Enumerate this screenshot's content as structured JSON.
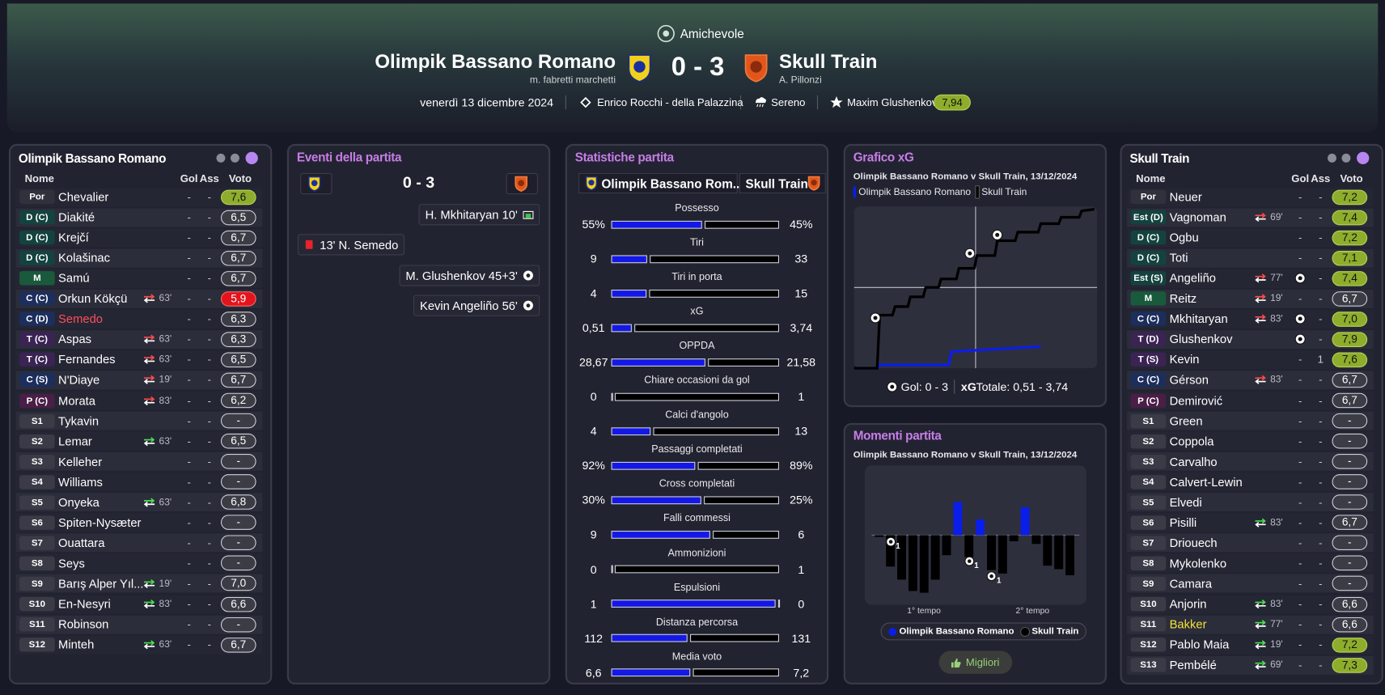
{
  "header": {
    "competition": "Amichevole",
    "home": {
      "name": "Olimpik Bassano Romano",
      "manager": "m. fabretti marchetti"
    },
    "score": "0 - 3",
    "away": {
      "name": "Skull Train",
      "manager": "A. Pillonzi"
    },
    "date": "venerdì 13 dicembre 2024",
    "stadium": "Enrico Rocchi - della Palazzina",
    "weather": "Sereno",
    "best_player": "Maxim Glushenkov",
    "best_rating": "7,94"
  },
  "home_lineup": {
    "title": "Olimpik Bassano Romano",
    "columns": [
      "Nome",
      "Gol",
      "Ass",
      "Voto"
    ],
    "rows": [
      {
        "pos": "Por",
        "name": "Chevalier",
        "gol": "-",
        "ass": "-",
        "voto": "7,6",
        "tone": "good"
      },
      {
        "pos": "D (C)",
        "name": "Diakité",
        "gol": "-",
        "ass": "-",
        "voto": "6,5"
      },
      {
        "pos": "D (C)",
        "name": "Krejčí",
        "gol": "-",
        "ass": "-",
        "voto": "6,7"
      },
      {
        "pos": "D (C)",
        "name": "Kolašinac",
        "gol": "-",
        "ass": "-",
        "voto": "6,7"
      },
      {
        "pos": "M",
        "name": "Samú",
        "gol": "-",
        "ass": "-",
        "voto": "6,7"
      },
      {
        "pos": "C (C)",
        "name": "Orkun Kökçü",
        "sub": "63'",
        "sub_dir": "out",
        "gol": "-",
        "ass": "-",
        "voto": "5,9",
        "tone": "bad"
      },
      {
        "pos": "C (D)",
        "name": "Semedo",
        "name_color": "#ff4d5e",
        "gol": "-",
        "ass": "-",
        "voto": "6,3"
      },
      {
        "pos": "T (C)",
        "name": "Aspas",
        "sub": "63'",
        "sub_dir": "out",
        "gol": "-",
        "ass": "-",
        "voto": "6,3"
      },
      {
        "pos": "T (C)",
        "name": "Fernandes",
        "sub": "63'",
        "sub_dir": "out",
        "gol": "-",
        "ass": "-",
        "voto": "6,5"
      },
      {
        "pos": "C (S)",
        "name": "N'Diaye",
        "sub": "19'",
        "sub_dir": "out",
        "gol": "-",
        "ass": "-",
        "voto": "6,7"
      },
      {
        "pos": "P (C)",
        "name": "Morata",
        "sub": "83'",
        "sub_dir": "out",
        "gol": "-",
        "ass": "-",
        "voto": "6,2"
      },
      {
        "pos": "S1",
        "name": "Tykavin",
        "gol": "-",
        "ass": "-",
        "voto": "-"
      },
      {
        "pos": "S2",
        "name": "Lemar",
        "sub": "63'",
        "sub_dir": "in",
        "gol": "-",
        "ass": "-",
        "voto": "6,5"
      },
      {
        "pos": "S3",
        "name": "Kelleher",
        "gol": "-",
        "ass": "-",
        "voto": "-"
      },
      {
        "pos": "S4",
        "name": "Williams",
        "gol": "-",
        "ass": "-",
        "voto": "-"
      },
      {
        "pos": "S5",
        "name": "Onyeka",
        "sub": "63'",
        "sub_dir": "in",
        "gol": "-",
        "ass": "-",
        "voto": "6,8"
      },
      {
        "pos": "S6",
        "name": "Spiten-Nysæter",
        "gol": "-",
        "ass": "-",
        "voto": "-"
      },
      {
        "pos": "S7",
        "name": "Ouattara",
        "gol": "-",
        "ass": "-",
        "voto": "-"
      },
      {
        "pos": "S8",
        "name": "Seys",
        "gol": "-",
        "ass": "-",
        "voto": "-"
      },
      {
        "pos": "S9",
        "name": "Barış Alper Yıl...",
        "sub": "19'",
        "sub_dir": "in",
        "gol": "-",
        "ass": "-",
        "voto": "7,0"
      },
      {
        "pos": "S10",
        "name": "En-Nesyri",
        "sub": "83'",
        "sub_dir": "in",
        "gol": "-",
        "ass": "-",
        "voto": "6,6"
      },
      {
        "pos": "S11",
        "name": "Robinson",
        "gol": "-",
        "ass": "-",
        "voto": "-"
      },
      {
        "pos": "S12",
        "name": "Minteh",
        "sub": "63'",
        "sub_dir": "in",
        "gol": "-",
        "ass": "-",
        "voto": "6,7"
      }
    ]
  },
  "away_lineup": {
    "title": "Skull Train",
    "columns": [
      "Nome",
      "Gol",
      "Ass",
      "Voto"
    ],
    "rows": [
      {
        "pos": "Por",
        "name": "Neuer",
        "gol": "-",
        "ass": "-",
        "voto": "7,2",
        "tone": "good"
      },
      {
        "pos": "Est (D)",
        "name": "Vagnoman",
        "sub": "69'",
        "sub_dir": "out",
        "gol": "-",
        "ass": "-",
        "voto": "7,4",
        "tone": "good"
      },
      {
        "pos": "D (C)",
        "name": "Ogbu",
        "gol": "-",
        "ass": "-",
        "voto": "7,2",
        "tone": "good"
      },
      {
        "pos": "D (C)",
        "name": "Toti",
        "gol": "-",
        "ass": "-",
        "voto": "7,1",
        "tone": "good"
      },
      {
        "pos": "Est (S)",
        "name": "Angeliño",
        "sub": "77'",
        "sub_dir": "out",
        "gol": 1,
        "ass": "-",
        "voto": "7,4",
        "tone": "good"
      },
      {
        "pos": "M",
        "name": "Reitz",
        "sub": "19'",
        "sub_dir": "out",
        "gol": "-",
        "ass": "-",
        "voto": "6,7"
      },
      {
        "pos": "C (C)",
        "name": "Mkhitaryan",
        "sub": "83'",
        "sub_dir": "out",
        "gol": 1,
        "ass": "-",
        "voto": "7,0",
        "tone": "good"
      },
      {
        "pos": "T (D)",
        "name": "Glushenkov",
        "gol": 1,
        "ass": "-",
        "voto": "7,9",
        "tone": "good"
      },
      {
        "pos": "T (S)",
        "name": "Kevin",
        "gol": "-",
        "ass": 1,
        "voto": "7,6",
        "tone": "good"
      },
      {
        "pos": "C (C)",
        "name": "Gérson",
        "sub": "83'",
        "sub_dir": "out",
        "gol": "-",
        "ass": "-",
        "voto": "6,7"
      },
      {
        "pos": "P (C)",
        "name": "Demirović",
        "gol": "-",
        "ass": "-",
        "voto": "6,7"
      },
      {
        "pos": "S1",
        "name": "Green",
        "gol": "-",
        "ass": "-",
        "voto": "-"
      },
      {
        "pos": "S2",
        "name": "Coppola",
        "gol": "-",
        "ass": "-",
        "voto": "-"
      },
      {
        "pos": "S3",
        "name": "Carvalho",
        "gol": "-",
        "ass": "-",
        "voto": "-"
      },
      {
        "pos": "S4",
        "name": "Calvert-Lewin",
        "gol": "-",
        "ass": "-",
        "voto": "-"
      },
      {
        "pos": "S5",
        "name": "Elvedi",
        "gol": "-",
        "ass": "-",
        "voto": "-"
      },
      {
        "pos": "S6",
        "name": "Pisilli",
        "sub": "83'",
        "sub_dir": "in",
        "gol": "-",
        "ass": "-",
        "voto": "6,7"
      },
      {
        "pos": "S7",
        "name": "Driouech",
        "gol": "-",
        "ass": "-",
        "voto": "-"
      },
      {
        "pos": "S8",
        "name": "Mykolenko",
        "gol": "-",
        "ass": "-",
        "voto": "-"
      },
      {
        "pos": "S9",
        "name": "Camara",
        "gol": "-",
        "ass": "-",
        "voto": "-"
      },
      {
        "pos": "S10",
        "name": "Anjorin",
        "sub": "83'",
        "sub_dir": "in",
        "gol": "-",
        "ass": "-",
        "voto": "6,6"
      },
      {
        "pos": "S11",
        "name": "Bakker",
        "name_color": "#f3e23a",
        "sub": "77'",
        "sub_dir": "in",
        "gol": "-",
        "ass": "-",
        "voto": "6,6"
      },
      {
        "pos": "S12",
        "name": "Pablo Maia",
        "sub": "19'",
        "sub_dir": "in",
        "gol": "-",
        "ass": "-",
        "voto": "7,2",
        "tone": "good"
      },
      {
        "pos": "S13",
        "name": "Pembélé",
        "sub": "69'",
        "sub_dir": "in",
        "gol": "-",
        "ass": "-",
        "voto": "7,3",
        "tone": "good"
      }
    ]
  },
  "events": {
    "title": "Eventi della partita",
    "score": "0 - 3",
    "items": [
      {
        "side": "away",
        "text": "H. Mkhitaryan 10'",
        "icon": "penalty"
      },
      {
        "side": "home",
        "text": "13' N. Semedo",
        "icon": "red-card"
      },
      {
        "side": "away",
        "text": "M. Glushenkov 45+3'",
        "icon": "goal"
      },
      {
        "side": "away",
        "text": "Kevin Angeliño 56'",
        "icon": "goal"
      }
    ]
  },
  "stats": {
    "title": "Statistiche partita",
    "home_tab": "Olimpik Bassano Rom...",
    "away_tab": "Skull Train",
    "items": [
      {
        "name": "Possesso",
        "home": {
          "value": 55,
          "label": "55%"
        },
        "away": {
          "value": 45,
          "label": "45%"
        }
      },
      {
        "name": "Tiri",
        "home": 9,
        "away": 33
      },
      {
        "name": "Tiri in porta",
        "home": 4,
        "away": 15
      },
      {
        "name": "xG",
        "home": {
          "value": 0.51,
          "label": "0,51"
        },
        "away": {
          "value": 3.74,
          "label": "3,74"
        }
      },
      {
        "name": "OPPDA",
        "home": {
          "value": 28.67,
          "label": "28,67"
        },
        "away": {
          "value": 21.58,
          "label": "21,58"
        }
      },
      {
        "name": "Chiare occasioni da gol",
        "home": 0,
        "away": 1
      },
      {
        "name": "Calci d'angolo",
        "home": 4,
        "away": 13
      },
      {
        "name": "Passaggi completati",
        "home": {
          "value": 92,
          "label": "92%"
        },
        "away": {
          "value": 89,
          "label": "89%"
        }
      },
      {
        "name": "Cross completati",
        "home": {
          "value": 30,
          "label": "30%"
        },
        "away": {
          "value": 25,
          "label": "25%"
        }
      },
      {
        "name": "Falli commessi",
        "home": 9,
        "away": 6
      },
      {
        "name": "Ammonizioni",
        "home": 0,
        "away": 1
      },
      {
        "name": "Espulsioni",
        "home": 1,
        "away": 0
      },
      {
        "name": "Distanza percorsa",
        "home": 112,
        "away": 131
      },
      {
        "name": "Media voto",
        "home": {
          "value": 6.6,
          "label": "6,6"
        },
        "away": {
          "value": 7.2,
          "label": "7,2"
        }
      }
    ]
  },
  "xg": {
    "title": "Grafico xG",
    "subtitle": "Olimpik Bassano Romano v Skull Train, 13/12/2024",
    "xlim": [
      0,
      95
    ],
    "ylim": [
      0,
      3.8
    ],
    "series": [
      {
        "name": "Olimpik Bassano Romano",
        "color": "#0b1de8",
        "minutes": [
          0,
          9,
          10,
          37,
          38,
          73
        ],
        "values": [
          0,
          0,
          0.08,
          0.08,
          0.39,
          0.51
        ]
      },
      {
        "name": "Skull Train",
        "color": "#000000",
        "minutes": [
          0,
          9,
          10,
          15,
          16,
          21,
          22,
          27,
          28,
          33,
          34,
          40,
          41,
          47,
          48,
          55,
          56,
          63,
          64,
          72,
          73,
          80,
          81,
          88,
          89,
          94
        ],
        "values": [
          0,
          0,
          1.25,
          1.25,
          1.45,
          1.45,
          1.68,
          1.68,
          1.9,
          1.9,
          2.1,
          2.1,
          2.35,
          2.35,
          2.65,
          2.65,
          3.0,
          3.0,
          3.2,
          3.2,
          3.4,
          3.4,
          3.55,
          3.55,
          3.7,
          3.74
        ]
      }
    ],
    "goals_text": "Gol: 0 - 3",
    "xg_text": "xG",
    "total_text": "Totale: 0,51 - 3,74"
  },
  "momenti": {
    "title": "Momenti partita",
    "subtitle": "Olimpik Bassano Romano v Skull Train, 13/12/2024",
    "ylim": [
      -8,
      8
    ],
    "series": [
      {
        "name": "Olimpik Bassano Romano",
        "color": "#0b1de8"
      },
      {
        "name": "Skull Train",
        "color": "#000000"
      }
    ],
    "values": [
      -0.2,
      -3.6,
      -5.1,
      -6.4,
      -6.6,
      -5.1,
      -2.3,
      3.8,
      -2.5,
      1.8,
      -4.0,
      -4.4,
      -0.7,
      3.2,
      -1.0,
      -3.5,
      -3.9,
      -4.6
    ],
    "x_labels": [
      "1° tempo",
      "2° tempo"
    ],
    "goal_labels": [
      "1",
      "1",
      "1"
    ],
    "button": "Migliori"
  }
}
